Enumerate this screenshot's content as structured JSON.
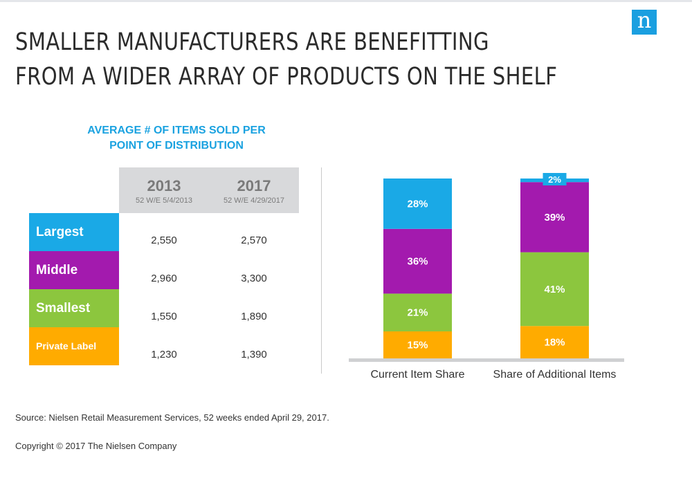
{
  "logo": "n",
  "title": [
    "SMALLER MANUFACTURERS ARE BENEFITTING",
    "FROM A WIDER ARRAY OF PRODUCTS ON THE SHELF"
  ],
  "table": {
    "title": [
      "AVERAGE # OF ITEMS SOLD PER",
      "POINT OF DISTRIBUTION"
    ],
    "columns": [
      {
        "year": "2013",
        "period": "52 W/E 5/4/2013"
      },
      {
        "year": "2017",
        "period": "52 W/E 4/29/2017"
      }
    ],
    "rows": [
      {
        "label": "Largest",
        "v2013": "2,550",
        "v2017": "2,570"
      },
      {
        "label": "Middle",
        "v2013": "2,960",
        "v2017": "3,300"
      },
      {
        "label": "Smallest",
        "v2013": "1,550",
        "v2017": "1,890"
      },
      {
        "label": "Private Label",
        "v2013": "1,230",
        "v2017": "1,390"
      }
    ]
  },
  "colors": {
    "Largest": "#1aa9e6",
    "Middle": "#a31aae",
    "Smallest": "#8cc63e",
    "Private Label": "#ffab00",
    "baseline": "#cfd0d2"
  },
  "chart_data": {
    "type": "bar",
    "stacked": true,
    "categories": [
      "Current Item Share",
      "Share of Additional Items"
    ],
    "series": [
      {
        "name": "Private Label",
        "values": [
          15,
          18
        ],
        "labels": [
          "15%",
          "18%"
        ]
      },
      {
        "name": "Smallest",
        "values": [
          21,
          41
        ],
        "labels": [
          "21%",
          "41%"
        ]
      },
      {
        "name": "Middle",
        "values": [
          36,
          39
        ],
        "labels": [
          "36%",
          "39%"
        ]
      },
      {
        "name": "Largest",
        "values": [
          28,
          2
        ],
        "labels": [
          "28%",
          "2%"
        ]
      }
    ],
    "ylim": [
      0,
      100
    ]
  },
  "footer": {
    "source": "Source: Nielsen Retail Measurement Services, 52 weeks ended April 29, 2017.",
    "copyright": "Copyright © 2017 The Nielsen Company"
  }
}
